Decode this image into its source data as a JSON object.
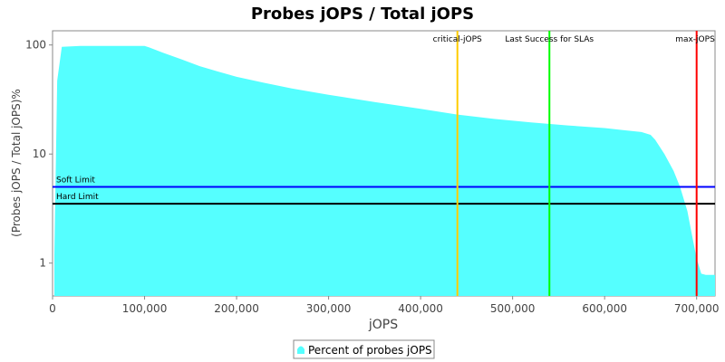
{
  "chart_data": {
    "type": "area",
    "title": "Probes jOPS / Total jOPS",
    "xlabel": "jOPS",
    "ylabel": "(Probes jOPS / Total jOPS)%",
    "y_scale": "log",
    "xlim": [
      0,
      720000
    ],
    "ylim": [
      0.5,
      135
    ],
    "x_ticks": [
      0,
      100000,
      200000,
      300000,
      400000,
      500000,
      600000,
      700000
    ],
    "x_tick_labels": [
      "0",
      "100,000",
      "200,000",
      "300,000",
      "400,000",
      "500,000",
      "600,000",
      "700,000"
    ],
    "y_ticks": [
      1,
      10,
      100
    ],
    "y_tick_labels": [
      "1",
      "10",
      "100"
    ],
    "grid": false,
    "series": [
      {
        "name": "Percent of probes jOPS",
        "color": "#55ffff",
        "x": [
          2000,
          5000,
          10000,
          30000,
          60000,
          100000,
          105000,
          120000,
          140000,
          160000,
          180000,
          200000,
          230000,
          260000,
          300000,
          350000,
          400000,
          440000,
          480000,
          520000,
          560000,
          600000,
          620000,
          640000,
          650000,
          655000,
          665000,
          675000,
          682000,
          690000,
          695000,
          700000,
          705000,
          710000,
          720000
        ],
        "values": [
          1.2,
          47,
          96,
          98,
          98,
          98,
          95,
          85,
          74,
          64,
          57,
          51,
          45,
          40,
          35,
          30,
          26,
          23,
          21,
          19.5,
          18.3,
          17.3,
          16.6,
          15.9,
          15,
          13.5,
          10,
          7,
          5,
          3,
          1.8,
          1.1,
          0.8,
          0.78,
          0.78
        ]
      }
    ],
    "horizontal_lines": [
      {
        "label": "Soft Limit",
        "value": 5,
        "color": "#0000ff"
      },
      {
        "label": "Hard Limit",
        "value": 3.5,
        "color": "#000000"
      }
    ],
    "vertical_lines": [
      {
        "label": "critical-jOPS",
        "value": 440000,
        "color": "#ffcc00"
      },
      {
        "label": "Last Success for SLAs",
        "value": 540000,
        "color": "#00ff00"
      },
      {
        "label": "max-jOPS",
        "value": 700000,
        "color": "#ff0000"
      }
    ],
    "legend": {
      "position": "bottom",
      "entries": [
        "Percent of probes jOPS"
      ]
    }
  }
}
